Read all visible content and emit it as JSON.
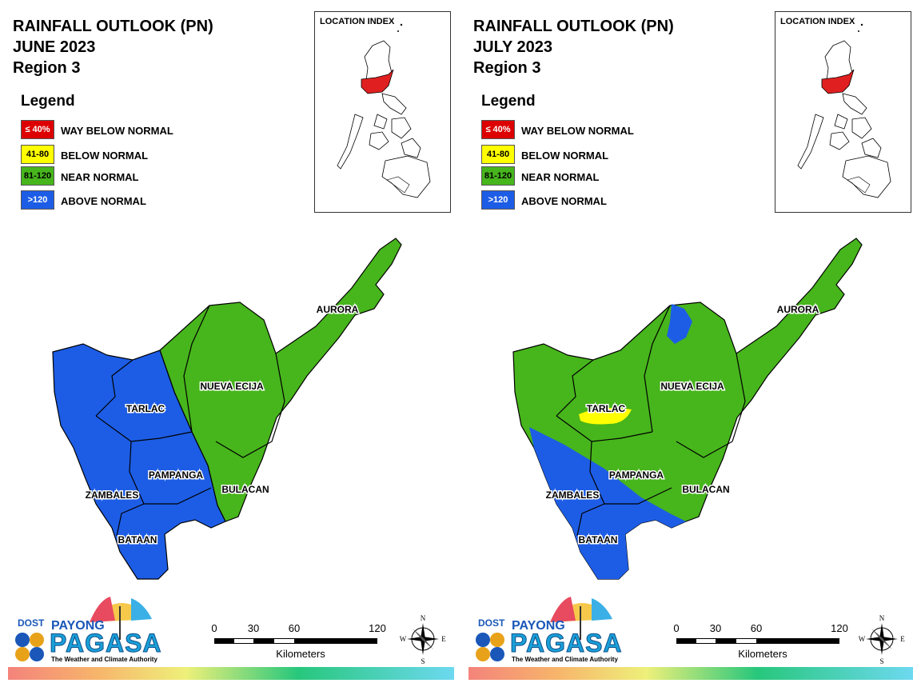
{
  "panels": [
    {
      "title_lines": [
        "RAINFALL OUTLOOK (PN)",
        "JUNE 2023",
        "Region 3"
      ],
      "legend": {
        "title": "Legend",
        "items": [
          {
            "swatch": "≤ 40%",
            "label": "WAY BELOW NORMAL",
            "color": "#dd0000",
            "text_color": "#ffffff"
          },
          {
            "swatch": "41-80",
            "label": "BELOW NORMAL",
            "color": "#ffff00",
            "text_color": "#000000"
          },
          {
            "swatch": "81-120",
            "label": "NEAR NORMAL",
            "color": "#47b51c",
            "text_color": "#000000"
          },
          {
            "swatch": ">120",
            "label": "ABOVE NORMAL",
            "color": "#1d5de6",
            "text_color": "#ffffff"
          }
        ]
      },
      "location_index": {
        "title": "LOCATION INDEX"
      },
      "provinces": [
        "AURORA",
        "NUEVA ECIJA",
        "TARLAC",
        "PAMPANGA",
        "BULACAN",
        "ZAMBALES",
        "BATAAN"
      ],
      "logo": {
        "dost": "DOST",
        "payong": "PAYONG",
        "pagasa": "PAGASA",
        "tagline": "The Weather and Climate Authority"
      },
      "scale": {
        "ticks": [
          "0",
          "30",
          "60",
          "120"
        ],
        "unit": "Kilometers"
      },
      "compass": {
        "n": "N",
        "s": "S",
        "e": "E",
        "w": "W"
      }
    },
    {
      "title_lines": [
        "RAINFALL OUTLOOK (PN)",
        "JULY 2023",
        "Region 3"
      ],
      "legend": {
        "title": "Legend",
        "items": [
          {
            "swatch": "≤ 40%",
            "label": "WAY BELOW NORMAL",
            "color": "#dd0000",
            "text_color": "#ffffff"
          },
          {
            "swatch": "41-80",
            "label": "BELOW NORMAL",
            "color": "#ffff00",
            "text_color": "#000000"
          },
          {
            "swatch": "81-120",
            "label": "NEAR NORMAL",
            "color": "#47b51c",
            "text_color": "#000000"
          },
          {
            "swatch": ">120",
            "label": "ABOVE NORMAL",
            "color": "#1d5de6",
            "text_color": "#ffffff"
          }
        ]
      },
      "location_index": {
        "title": "LOCATION INDEX"
      },
      "provinces": [
        "AURORA",
        "NUEVA ECIJA",
        "TARLAC",
        "PAMPANGA",
        "BULACAN",
        "ZAMBALES",
        "BATAAN"
      ],
      "logo": {
        "dost": "DOST",
        "payong": "PAYONG",
        "pagasa": "PAGASA",
        "tagline": "The Weather and Climate Authority"
      },
      "scale": {
        "ticks": [
          "0",
          "30",
          "60",
          "120"
        ],
        "unit": "Kilometers"
      },
      "compass": {
        "n": "N",
        "s": "S",
        "e": "E",
        "w": "W"
      }
    }
  ],
  "colors": {
    "near_normal": "#47b51c",
    "above_normal": "#1d5de6",
    "below_normal": "#ffff00",
    "way_below": "#dd0000"
  }
}
